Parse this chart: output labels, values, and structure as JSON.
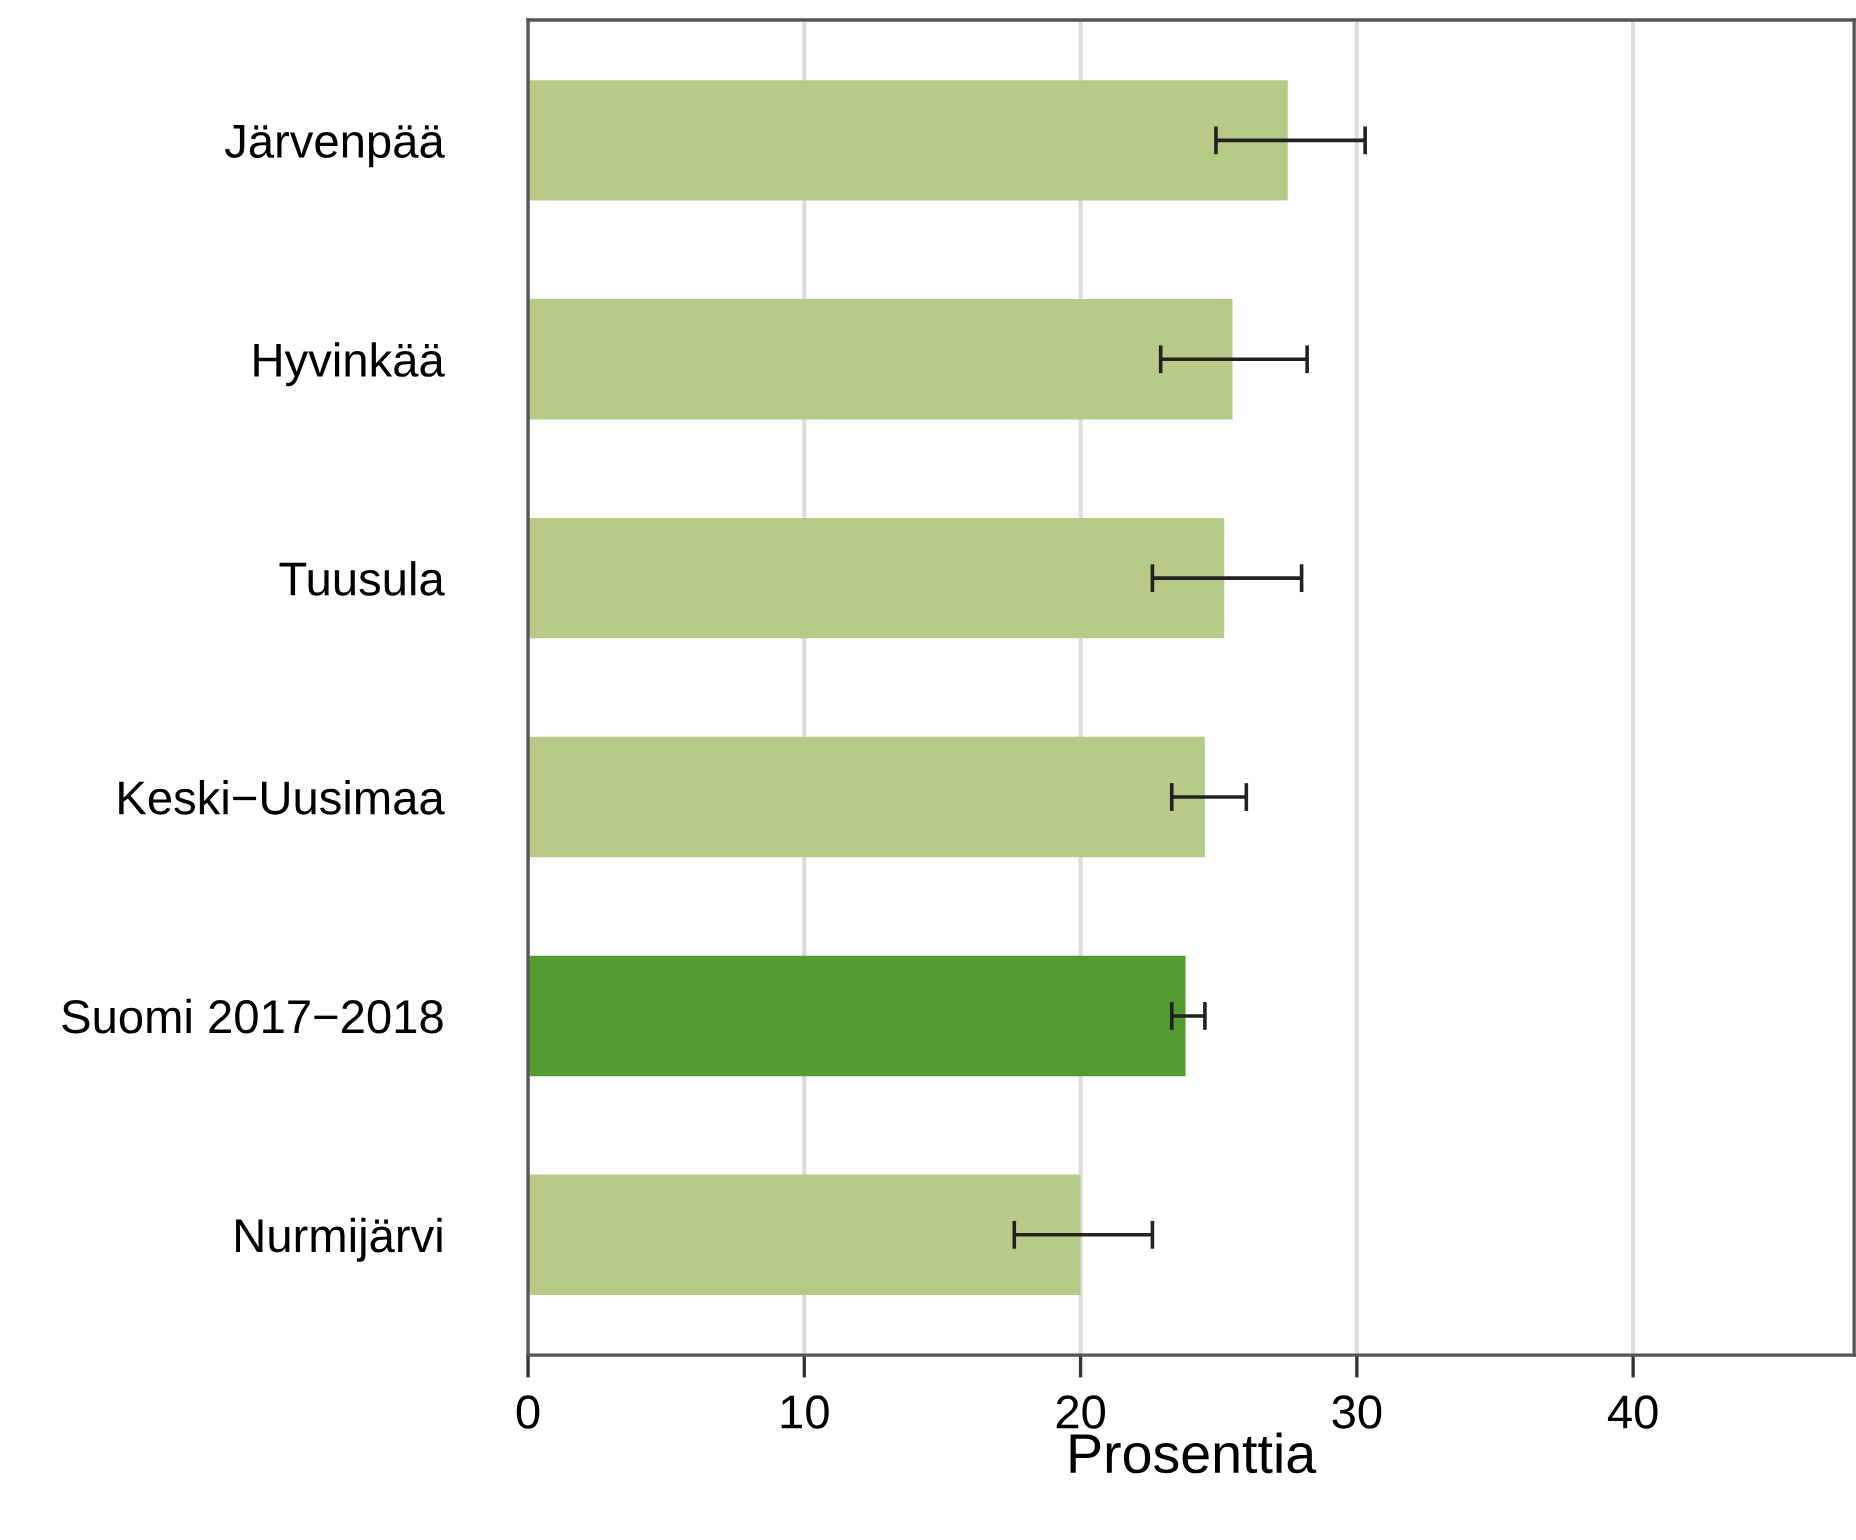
{
  "chart_data": {
    "type": "bar",
    "orientation": "horizontal",
    "xlabel": "Prosenttia",
    "categories": [
      "Järvenpää",
      "Hyvinkää",
      "Tuusula",
      "Keski−Uusimaa",
      "Suomi 2017−2018",
      "Nurmijärvi"
    ],
    "values": [
      27.5,
      25.5,
      25.2,
      24.5,
      23.8,
      20.0
    ],
    "errors": [
      [
        24.9,
        30.3
      ],
      [
        22.9,
        28.2
      ],
      [
        22.6,
        28.0
      ],
      [
        23.3,
        26.0
      ],
      [
        23.3,
        24.5
      ],
      [
        17.6,
        22.6
      ]
    ],
    "colors": [
      "#b8ca88",
      "#b8ca88",
      "#b8ca88",
      "#b8ca88",
      "#529c31",
      "#b8ca88"
    ],
    "xlim": [
      0,
      48
    ],
    "xticks": [
      0,
      10,
      20,
      30,
      40
    ],
    "grid": "x"
  }
}
